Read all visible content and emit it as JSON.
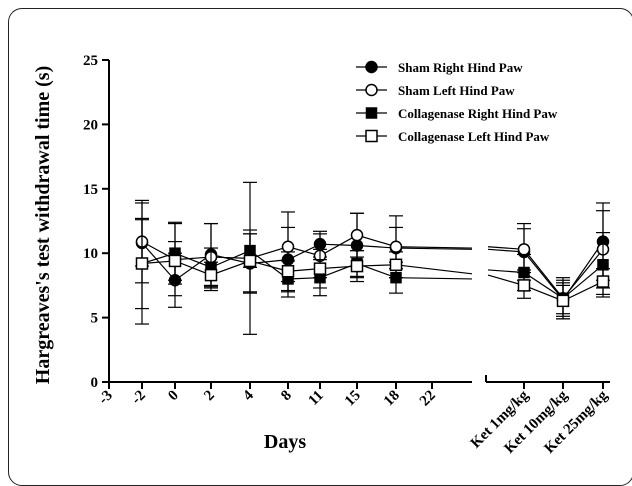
{
  "chart_data": {
    "type": "line",
    "xlabel": "Days",
    "ylabel": "Hargreaves's test withdrawal time (s)",
    "ylim": [
      0,
      25
    ],
    "yticks": [
      "0",
      "5",
      "10",
      "15",
      "20",
      "25"
    ],
    "xticks": [
      "-3",
      "-2",
      "0",
      "2",
      "4",
      "8",
      "11",
      "15",
      "18",
      "22"
    ],
    "ket_ticks": [
      "Ket 1mg/kg",
      "Ket 10mg/kg",
      "Ket 25mg/kg"
    ],
    "days": [
      "-2",
      "2",
      "4",
      "8",
      "11",
      "15",
      "18",
      "22"
    ],
    "ket": [
      "Ket 1mg/kg",
      "Ket 10mg/kg",
      "Ket 25mg/kg"
    ],
    "legend_position": "top-right",
    "series": [
      {
        "name": "Sham Right Hind Paw",
        "marker": "filled-circle",
        "days_values": [
          10.8,
          7.9,
          9.9,
          9.2,
          9.5,
          10.7,
          10.6,
          10.4
        ],
        "days_errors": [
          1.8,
          2.1,
          2.4,
          2.3,
          2.5,
          1.0,
          2.5,
          1.6
        ],
        "ket_values": [
          10.1,
          6.4,
          10.9
        ],
        "ket_errors": [
          2.2,
          1.5,
          3.0
        ]
      },
      {
        "name": "Sham Left Hind Paw",
        "marker": "open-circle",
        "days_values": [
          10.9,
          9.5,
          9.7,
          9.6,
          10.5,
          9.8,
          11.4,
          10.5
        ],
        "days_errors": [
          3.2,
          2.8,
          2.6,
          5.9,
          2.7,
          1.7,
          1.7,
          2.4
        ],
        "ket_values": [
          10.3,
          6.5,
          10.3
        ],
        "ket_errors": [
          1.6,
          1.6,
          3.0
        ]
      },
      {
        "name": "Collagenase Right Hind Paw",
        "marker": "filled-square",
        "days_values": [
          9.2,
          10.0,
          8.9,
          10.2,
          8.0,
          8.1,
          9.2,
          8.1
        ],
        "days_errors": [
          3.5,
          2.4,
          1.5,
          1.3,
          1.4,
          1.4,
          1.0,
          1.2
        ],
        "ket_values": [
          8.5,
          6.5,
          9.1
        ],
        "ket_errors": [
          1.4,
          1.2,
          2.5
        ]
      },
      {
        "name": "Collagenase Left Hind Paw",
        "marker": "open-square",
        "days_values": [
          9.2,
          9.4,
          8.3,
          9.4,
          8.6,
          8.8,
          9.0,
          9.1
        ],
        "days_errors": [
          4.7,
          1.5,
          1.0,
          2.4,
          1.5,
          1.5,
          1.2,
          1.0
        ],
        "ket_values": [
          7.5,
          6.3,
          7.8
        ],
        "ket_errors": [
          1.0,
          1.2,
          1.0
        ]
      }
    ]
  }
}
